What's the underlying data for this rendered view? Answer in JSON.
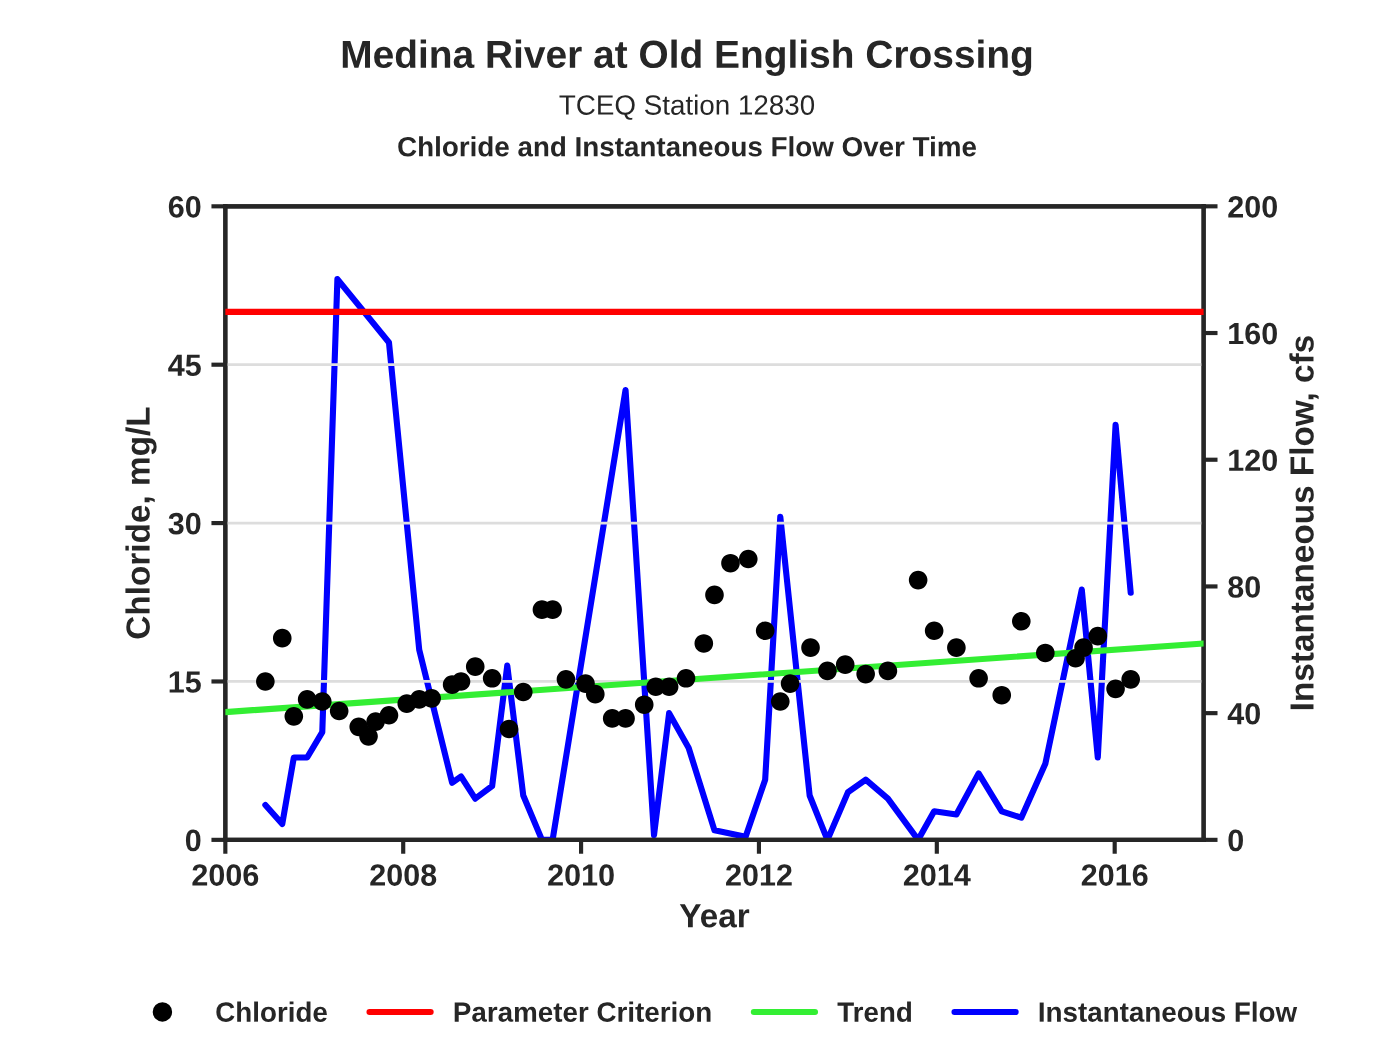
{
  "chart_data": {
    "type": "scatter",
    "title": "Medina River at Old English Crossing",
    "subtitle": "TCEQ Station 12830",
    "annotations": [
      "Chloride and Instantaneous Flow Over Time"
    ],
    "xlabel": "Year",
    "ylabel": "Chloride, mg/L",
    "y2label": "Instantaneous Flow, cfs",
    "xlim": [
      2006,
      2017
    ],
    "xticks": [
      2006,
      2008,
      2010,
      2012,
      2014,
      2016
    ],
    "ylim": [
      0,
      60
    ],
    "yticks": [
      0,
      15,
      30,
      45,
      60
    ],
    "y2lim": [
      0,
      200
    ],
    "y2ticks": [
      0,
      40,
      80,
      120,
      160,
      200
    ],
    "grid": "y",
    "legend": "bottom",
    "ref_lines": [
      {
        "axis": "y",
        "value": 50,
        "label": "Parameter Criterion",
        "color": "#ff0000",
        "line_style": "solid"
      }
    ],
    "series": [
      {
        "name": "Chloride",
        "color": "#000000",
        "marker": "circle",
        "x": [
          2006.45,
          2006.64,
          2006.77,
          2006.92,
          2007.09,
          2007.28,
          2007.5,
          2007.61,
          2007.69,
          2007.84,
          2008.04,
          2008.18,
          2008.32,
          2008.55,
          2008.65,
          2008.81,
          2009.0,
          2009.19,
          2009.35,
          2009.56,
          2009.68,
          2009.83,
          2010.05,
          2010.16,
          2010.35,
          2010.5,
          2010.71,
          2010.84,
          2010.99,
          2011.18,
          2011.38,
          2011.5,
          2011.68,
          2011.88,
          2012.07,
          2012.24,
          2012.35,
          2012.58,
          2012.77,
          2012.97,
          2013.2,
          2013.45,
          2013.79,
          2013.97,
          2014.22,
          2014.47,
          2014.73,
          2014.95,
          2015.22,
          2015.56,
          2015.65,
          2015.81,
          2016.01,
          2016.18
        ],
        "values": [
          15.0,
          19.1,
          11.7,
          13.3,
          13.1,
          12.2,
          10.7,
          9.8,
          11.2,
          11.8,
          12.9,
          13.3,
          13.4,
          14.7,
          15.0,
          16.4,
          15.3,
          10.5,
          14.0,
          21.8,
          21.8,
          15.2,
          14.8,
          13.8,
          11.5,
          11.5,
          12.8,
          14.5,
          14.5,
          15.3,
          18.6,
          23.2,
          26.2,
          26.6,
          19.8,
          13.1,
          14.8,
          18.2,
          16.0,
          16.6,
          15.7,
          16.0,
          24.6,
          19.8,
          18.2,
          15.3,
          13.7,
          20.7,
          17.7,
          17.2,
          18.2,
          19.3,
          14.3,
          15.2
        ]
      },
      {
        "name": "Trend",
        "type": "line",
        "color": "#33ee33",
        "marker": "none",
        "line_style": "solid",
        "x": [
          2006,
          2017
        ],
        "values": [
          12.1,
          18.6
        ]
      },
      {
        "name": "Instantaneous Flow",
        "type": "line",
        "axis": "y2",
        "color": "#0000ff",
        "marker": "none",
        "line_style": "solid",
        "x": [
          2006.45,
          2006.64,
          2006.77,
          2006.92,
          2007.09,
          2007.26,
          2007.84,
          2008.18,
          2008.55,
          2008.65,
          2008.81,
          2009.0,
          2009.17,
          2009.35,
          2009.56,
          2009.68,
          2010.5,
          2010.82,
          2010.99,
          2011.21,
          2011.5,
          2011.85,
          2012.07,
          2012.24,
          2012.57,
          2012.77,
          2013.0,
          2013.2,
          2013.45,
          2013.79,
          2013.97,
          2014.22,
          2014.47,
          2014.73,
          2014.95,
          2015.22,
          2015.63,
          2015.81,
          2016.01,
          2016.18
        ],
        "values": [
          11,
          5,
          26,
          26,
          34,
          177,
          157,
          60,
          18,
          20,
          13,
          17,
          55,
          14,
          0,
          0,
          142,
          1.5,
          40,
          29,
          3,
          1,
          19,
          102,
          14,
          0,
          15,
          19,
          13,
          0,
          9,
          8,
          21,
          9,
          7,
          24,
          79,
          26,
          131,
          78
        ]
      }
    ]
  }
}
